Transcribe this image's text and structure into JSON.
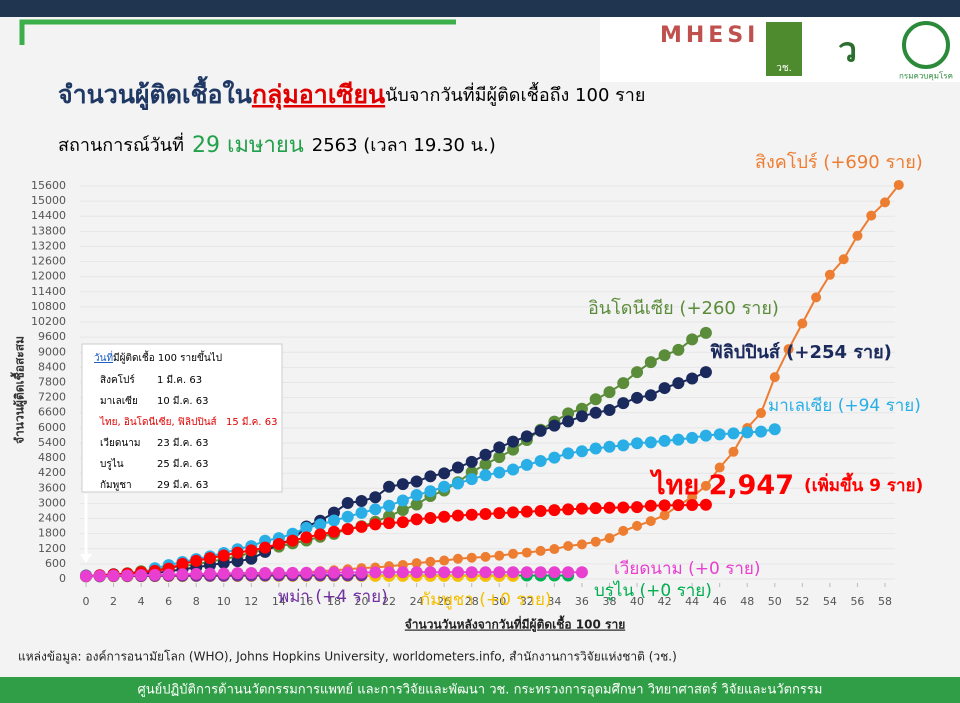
{
  "header": {
    "logo": "MHESI",
    "logo2": "วช.",
    "logo3": "กรมควบคุมโรค"
  },
  "chart_data": {
    "type": "line",
    "title": [
      "จำนวนผู้ติดเชื้อใน",
      "กลุ่มอาเซียน",
      "นับจากวันที่มีผู้ติดเชื้อถึง 100 ราย"
    ],
    "subtitle": [
      "สถานการณ์วันที่",
      "29 เมษายน",
      "2563  (เวลา 19.30 น.)"
    ],
    "x_label": "จำนวนวันหลังจากวันที่มีผู้ติดเชื้อ 100 ราย",
    "y_label": "จำนวนผู้ติดเชื้อสะสม",
    "xlim": [
      0,
      58
    ],
    "xticks": [
      0,
      2,
      4,
      6,
      8,
      10,
      12,
      14,
      16,
      18,
      20,
      22,
      24,
      26,
      28,
      30,
      32,
      34,
      36,
      38,
      40,
      42,
      44,
      46,
      48,
      50,
      52,
      54,
      56,
      58
    ],
    "ylim": [
      0,
      15600
    ],
    "yticks": [
      0,
      600,
      1200,
      1800,
      2400,
      3000,
      3600,
      4200,
      4800,
      5400,
      6000,
      6600,
      7200,
      7800,
      8400,
      9000,
      9600,
      10200,
      10800,
      11400,
      12000,
      12600,
      13200,
      13800,
      14400,
      15000,
      15600
    ],
    "series": [
      {
        "name": "สิงคโปร์ (+690 ราย)",
        "color": "#ed7d31",
        "values": [
          106,
          108,
          110,
          112,
          117,
          130,
          138,
          150,
          160,
          166,
          178,
          187,
          200,
          212,
          226,
          243,
          266,
          313,
          345,
          385,
          432,
          455,
          509,
          558,
          631,
          683,
          732,
          802,
          844,
          879,
          926,
          1000,
          1049,
          1114,
          1189,
          1309,
          1375,
          1481,
          1623,
          1910,
          2108,
          2299,
          2532,
          2918,
          3252,
          3699,
          4427,
          5050,
          5992,
          6588,
          8014,
          9125,
          10141,
          11178,
          12075,
          12693,
          13624,
          14423,
          14951,
          15641
        ]
      },
      {
        "name": "อินโดนีเซีย (+260 ราย)",
        "color": "#5b8c3a",
        "values": [
          117,
          134,
          172,
          227,
          309,
          369,
          450,
          514,
          579,
          686,
          790,
          893,
          1046,
          1155,
          1285,
          1414,
          1528,
          1677,
          1790,
          1986,
          2092,
          2273,
          2491,
          2738,
          2956,
          3293,
          3512,
          3842,
          4241,
          4557,
          4839,
          5136,
          5516,
          5923,
          6248,
          6575,
          6760,
          7135,
          7418,
          7775,
          8211,
          8607,
          8882,
          9096,
          9511,
          9771
        ]
      },
      {
        "name": "ฟิลิปปินส์ (+254 ราย)",
        "color": "#1b2a5c",
        "values": [
          140,
          142,
          187,
          202,
          217,
          230,
          307,
          380,
          462,
          552,
          636,
          707,
          803,
          1075,
          1418,
          1546,
          2084,
          2311,
          2633,
          3018,
          3094,
          3246,
          3660,
          3764,
          3870,
          4076,
          4195,
          4428,
          4648,
          4932,
          5223,
          5453,
          5660,
          5878,
          6087,
          6259,
          6459,
          6599,
          6710,
          6981,
          7192,
          7294,
          7579,
          7777,
          7958,
          8212
        ]
      },
      {
        "name": "มาเลเซีย (+94 ราย)",
        "color": "#29aee6",
        "values": [
          129,
          149,
          158,
          197,
          238,
          428,
          553,
          673,
          790,
          900,
          1030,
          1183,
          1306,
          1518,
          1624,
          1796,
          2031,
          2161,
          2320,
          2470,
          2626,
          2766,
          2908,
          3116,
          3333,
          3483,
          3662,
          3793,
          3963,
          4119,
          4228,
          4346,
          4530,
          4683,
          4817,
          4987,
          5072,
          5182,
          5251,
          5305,
          5389,
          5425,
          5482,
          5532,
          5603,
          5691,
          5742,
          5780,
          5820,
          5851,
          5945
        ]
      },
      {
        "name": "ไทย 2,947",
        "note": "(เพิ่มขึ้น 9 ราย)",
        "color": "#ff0000",
        "values": [
          114,
          147,
          177,
          212,
          272,
          322,
          411,
          599,
          721,
          827,
          934,
          1045,
          1136,
          1245,
          1388,
          1524,
          1651,
          1771,
          1875,
          1978,
          2067,
          2169,
          2220,
          2258,
          2369,
          2423,
          2473,
          2518,
          2551,
          2579,
          2613,
          2643,
          2672,
          2700,
          2733,
          2765,
          2792,
          2811,
          2826,
          2839,
          2854,
          2907,
          2922,
          2931,
          2938,
          2947
        ]
      },
      {
        "name": "บรูไน (+0 ราย)",
        "color": "#00b050",
        "values": [
          104,
          105,
          114,
          115,
          120,
          126,
          127,
          129,
          131,
          133,
          134,
          135,
          135,
          135,
          136,
          136,
          136,
          136,
          137,
          137,
          138,
          138,
          138,
          138,
          138,
          138,
          138,
          138,
          138,
          138,
          138,
          138,
          138,
          138,
          138,
          138
        ]
      },
      {
        "name": "กัมพูชา (+0 ราย)",
        "color": "#f5c000",
        "values": [
          103,
          107,
          109,
          109,
          110,
          114,
          114,
          115,
          117,
          117,
          119,
          120,
          122,
          122,
          122,
          122,
          122,
          122,
          122,
          122,
          122,
          122,
          122,
          122,
          122,
          122,
          122,
          122,
          122,
          122,
          122,
          122
        ]
      },
      {
        "name": "พม่า (+4 ราย)",
        "color": "#7030a0",
        "values": [
          110,
          111,
          119,
          119,
          121,
          123,
          127,
          127,
          129,
          129,
          131,
          133,
          138,
          139,
          144,
          145,
          146,
          146,
          146,
          146,
          150
        ]
      },
      {
        "name": "เวียดนาม (+0 ราย)",
        "color": "#e83fd1",
        "values": [
          113,
          123,
          134,
          141,
          153,
          163,
          174,
          188,
          203,
          212,
          218,
          233,
          237,
          240,
          241,
          245,
          249,
          251,
          255,
          257,
          258,
          262,
          265,
          266,
          267,
          268,
          268,
          268,
          268,
          268,
          270,
          270,
          270,
          270,
          270,
          270,
          270
        ]
      }
    ]
  },
  "inset": {
    "heading": [
      "วันที่",
      "มีผู้ติดเชื้อ 100 รายขึ้นไป"
    ],
    "rows": [
      [
        "สิงคโปร์",
        "1 มี.ค. 63"
      ],
      [
        "มาเลเซีย",
        "10 มี.ค. 63"
      ],
      [
        "ไทย, อินโดนีเซีย, ฟิลิปปินส์",
        "15 มี.ค. 63"
      ],
      [
        "เวียดนาม",
        "23 มี.ค. 63"
      ],
      [
        "บรูไน",
        "25 มี.ค. 63"
      ],
      [
        "กัมพูชา",
        "29 มี.ค. 63"
      ]
    ]
  },
  "source": "แหล่งข้อมูล: องค์การอนามัยโลก (WHO), Johns Hopkins University, worldometers.info, สำนักงานการวิจัยแห่งชาติ (วช.)",
  "footer": "ศูนย์ปฏิบัติการด้านนวัตกรรมการแพทย์ และการวิจัยและพัฒนา  วช.   กระทรวงการอุดมศึกษา วิทยาศาสตร์ วิจัยและนวัตกรรม"
}
